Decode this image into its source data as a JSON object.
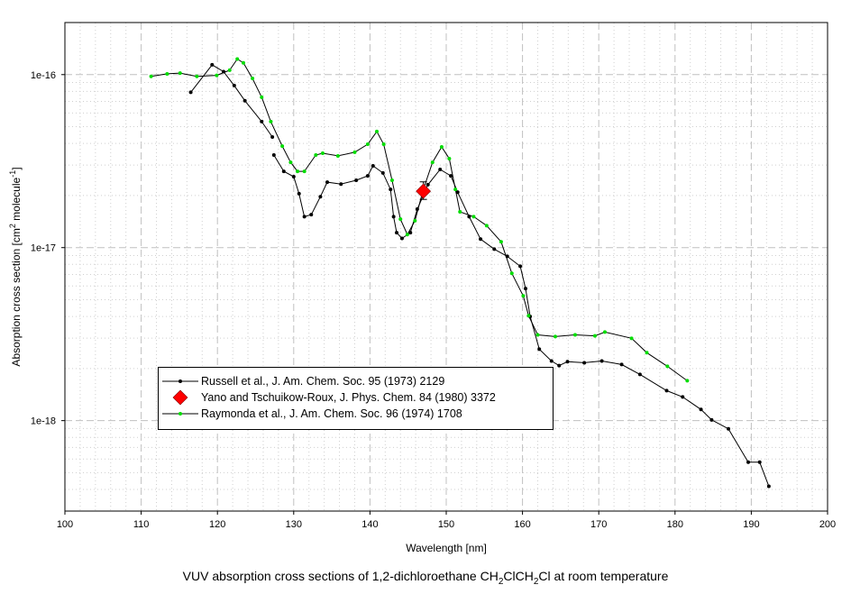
{
  "chart_data": {
    "type": "line",
    "title_parts": [
      "VUV absorption cross sections of 1,2-dichloroethane CH",
      "2",
      "ClCH",
      "2",
      "Cl at room temperature"
    ],
    "xlabel": "Wavelength [nm]",
    "ylabel_parts": [
      "Absorption cross section [cm",
      "2",
      " molecule",
      "-1",
      "]"
    ],
    "xlim": [
      100,
      200
    ],
    "ylim": [
      3e-19,
      2e-16
    ],
    "yscale": "log",
    "grid": true,
    "legend_position": "lower-left",
    "x_ticks": [
      "100",
      "110",
      "120",
      "130",
      "140",
      "150",
      "160",
      "170",
      "180",
      "190",
      "200"
    ],
    "y_ticks": [
      {
        "value": 1e-16,
        "label": "1e-16"
      },
      {
        "value": 1e-17,
        "label": "1e-17"
      },
      {
        "value": 1e-18,
        "label": "1e-18"
      }
    ],
    "series": [
      {
        "name": "Russell et al., J. Am. Chem. Soc. 95 (1973) 2129",
        "color": "#000000",
        "marker": "dot",
        "segments": [
          {
            "x": [
              116.5,
              119.3,
              120.8,
              122.2,
              123.6,
              125.8,
              127.2
            ],
            "y": [
              7.9e-17,
              1.14e-16,
              1.04e-16,
              8.65e-17,
              7.06e-17,
              5.35e-17,
              4.36e-17
            ]
          },
          {
            "x": [
              127.4,
              128.7,
              130.0,
              130.7,
              131.4,
              132.3,
              133.5,
              134.4,
              136.2,
              138.2,
              139.7,
              140.4,
              141.7,
              142.7,
              143.1,
              143.5,
              144.2,
              145.3,
              146.2,
              147.6,
              149.2,
              150.6,
              151.5,
              153.0,
              154.5,
              156.3,
              158.0,
              159.7,
              160.4,
              161.0,
              162.2,
              163.8,
              164.8,
              165.9,
              168.1,
              170.4,
              173.0,
              175.4,
              178.9,
              181.0,
              183.4,
              184.8,
              187.0,
              189.6,
              191.1,
              192.3
            ],
            "y": [
              3.43e-17,
              2.76e-17,
              2.57e-17,
              2.05e-17,
              1.51e-17,
              1.55e-17,
              1.97e-17,
              2.39e-17,
              2.33e-17,
              2.45e-17,
              2.6e-17,
              2.97e-17,
              2.7e-17,
              2.17e-17,
              1.51e-17,
              1.22e-17,
              1.13e-17,
              1.22e-17,
              1.67e-17,
              2.31e-17,
              2.83e-17,
              2.6e-17,
              2.09e-17,
              1.51e-17,
              1.12e-17,
              9.8e-18,
              8.9e-18,
              7.8e-18,
              5.8e-18,
              4e-18,
              2.59e-18,
              2.21e-18,
              2.08e-18,
              2.19e-18,
              2.16e-18,
              2.21e-18,
              2.11e-18,
              1.85e-18,
              1.49e-18,
              1.37e-18,
              1.16e-18,
              1.01e-18,
              8.97e-19,
              5.75e-19,
              5.75e-19,
              4.17e-19
            ]
          }
        ]
      },
      {
        "name": "Yano and Tschuikow-Roux,  J. Phys. Chem. 84 (1980) 3372",
        "color": "#ff0000",
        "marker": "diamond",
        "segments": [
          {
            "x": [
              147.0
            ],
            "y": [
              2.12e-17
            ],
            "yerr_low": [
              1.9e-17
            ],
            "yerr_high": [
              2.4e-17
            ]
          }
        ]
      },
      {
        "name": "Raymonda et al., J. Am. Chem. Soc. 96 (1974) 1708",
        "color": "#00dd00",
        "marker": "dot",
        "segments": [
          {
            "x": [
              111.3,
              113.4,
              115.1,
              117.3,
              119.9,
              121.6,
              122.6,
              123.4,
              124.6,
              125.8,
              127.0,
              128.5,
              129.6,
              130.5,
              131.4,
              132.9,
              133.8,
              135.8,
              138.0,
              139.7,
              140.9,
              141.8,
              142.9,
              144.0,
              144.9,
              145.9,
              147.0,
              148.2,
              149.4,
              150.4,
              151.2,
              151.8,
              153.6,
              155.3,
              157.2,
              158.6,
              160.1,
              160.8,
              162.0,
              164.3,
              166.9,
              169.5,
              170.8,
              174.3,
              176.3,
              179.0,
              181.6
            ],
            "y": [
              9.77e-17,
              1.01e-16,
              1.02e-16,
              9.77e-17,
              9.9e-17,
              1.06e-16,
              1.23e-16,
              1.17e-16,
              9.5e-17,
              7.4e-17,
              5.35e-17,
              3.86e-17,
              3.11e-17,
              2.76e-17,
              2.76e-17,
              3.43e-17,
              3.51e-17,
              3.39e-17,
              3.56e-17,
              3.96e-17,
              4.69e-17,
              3.96e-17,
              2.45e-17,
              1.46e-17,
              1.19e-17,
              1.43e-17,
              2.17e-17,
              3.11e-17,
              3.82e-17,
              3.27e-17,
              2.17e-17,
              1.61e-17,
              1.51e-17,
              1.34e-17,
              1.08e-17,
              7.1e-18,
              5.26e-18,
              4.04e-18,
              3.13e-18,
              3.06e-18,
              3.13e-18,
              3.09e-18,
              3.25e-18,
              2.99e-18,
              2.47e-18,
              2.06e-18,
              1.7e-18
            ]
          }
        ]
      }
    ]
  }
}
